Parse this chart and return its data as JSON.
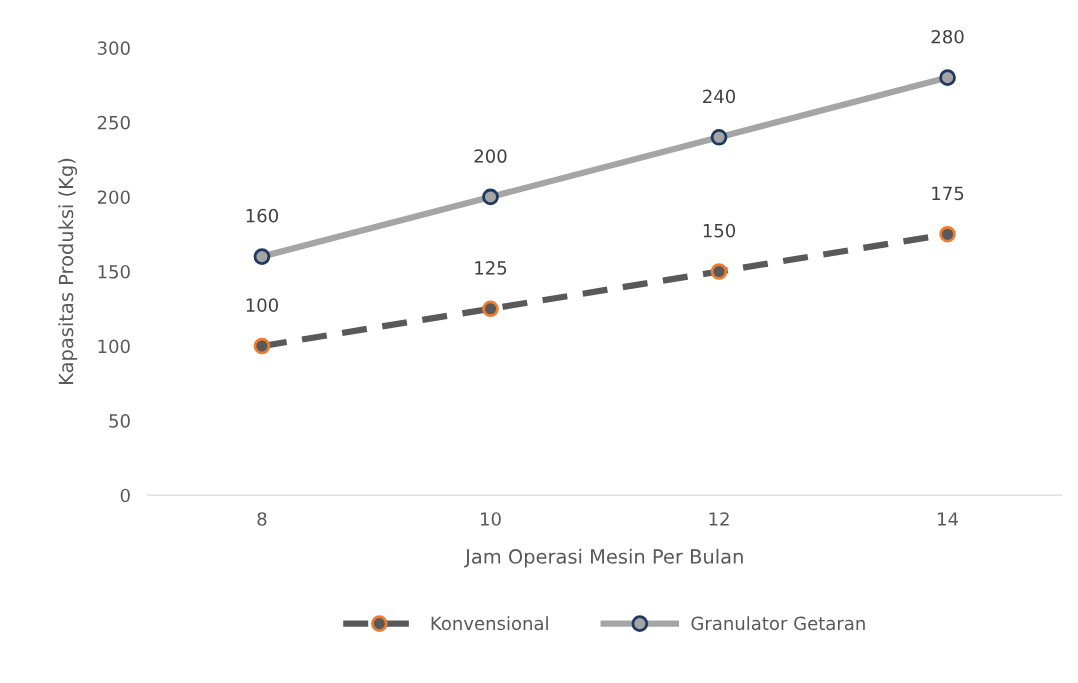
{
  "chart_data": {
    "type": "line",
    "xlabel": "Jam Operasi Mesin Per Bulan",
    "ylabel": "Kapasitas Produksi (Kg)",
    "categories": [
      "8",
      "10",
      "12",
      "14"
    ],
    "series": [
      {
        "name": "Konvensional",
        "color": "#595959",
        "line_style": "dashed",
        "values": [
          100,
          125,
          150,
          175
        ]
      },
      {
        "name": "Granulator Getaran",
        "color": "#a5a5a5",
        "line_style": "solid",
        "values": [
          160,
          200,
          240,
          280
        ]
      }
    ],
    "ylim": [
      0,
      300
    ],
    "yticks": [
      0,
      50,
      100,
      150,
      200,
      250,
      300
    ],
    "grid": false,
    "legend": "bottom",
    "marker": "circle",
    "data_labels": true
  }
}
